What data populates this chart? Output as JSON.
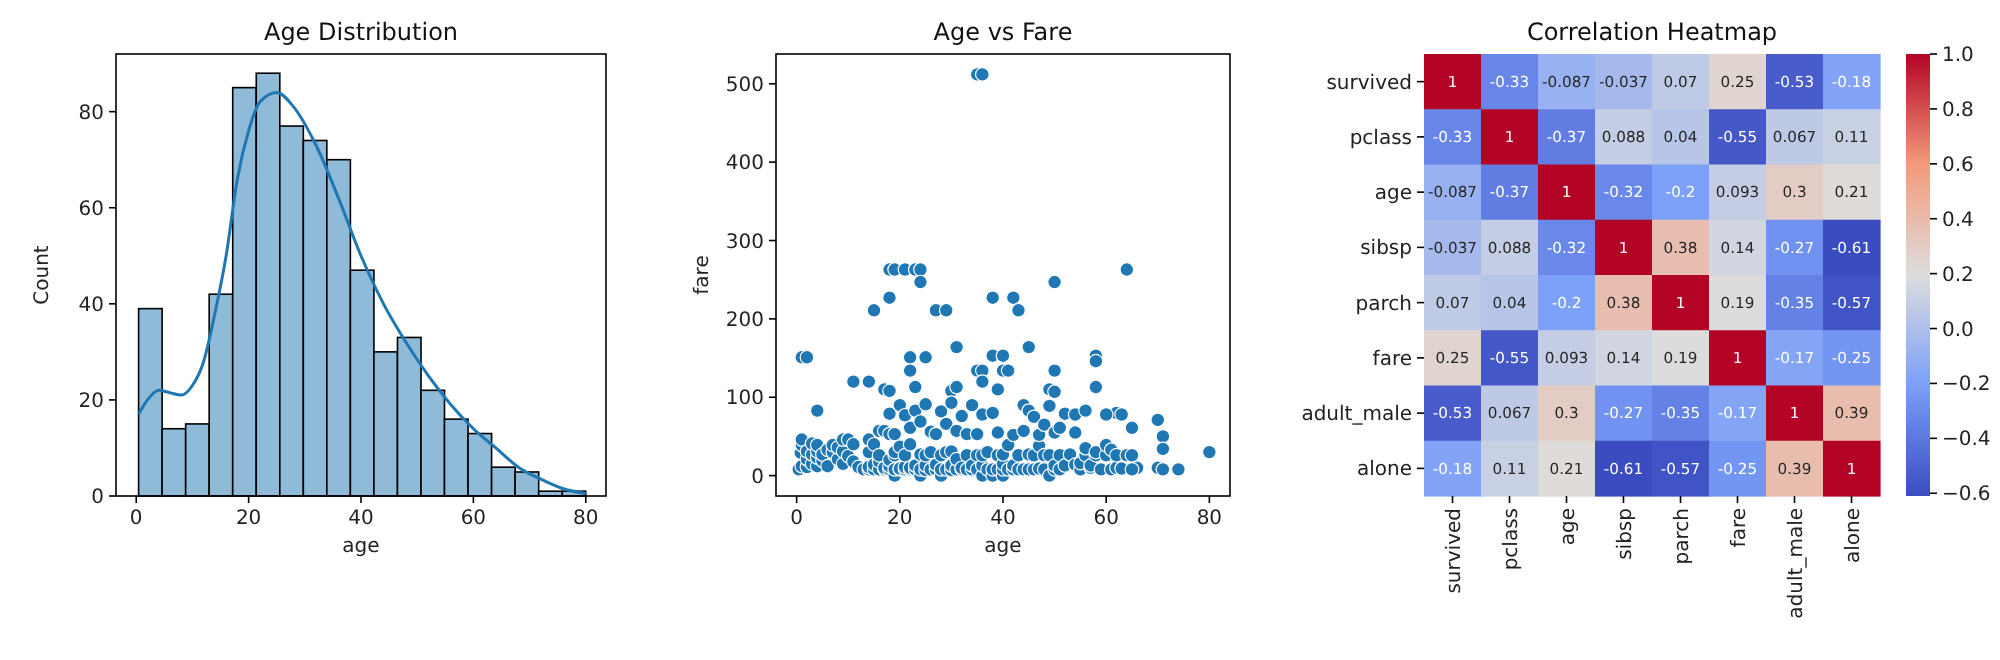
{
  "chart_data": [
    {
      "type": "histogram",
      "title": "Age Distribution",
      "xlabel": "age",
      "ylabel": "Count",
      "xlim": [
        -3.6,
        83.6
      ],
      "xticks": [
        0,
        20,
        40,
        60,
        80
      ],
      "ylim": [
        0,
        92
      ],
      "yticks": [
        0,
        20,
        40,
        60,
        80
      ],
      "series": [
        {
          "type": "histogram",
          "color": "#8fbbd9",
          "bins": [
            0.42,
            4.61,
            8.8,
            12.98,
            17.17,
            21.36,
            25.55,
            29.74,
            33.92,
            38.11,
            42.3,
            46.49,
            50.68,
            54.86,
            59.05,
            63.24,
            67.43,
            71.62,
            75.81,
            80
          ],
          "values": [
            39,
            14,
            15,
            42,
            85,
            88,
            77,
            74,
            70,
            47,
            30,
            33,
            22,
            16,
            13,
            6,
            5,
            1,
            1
          ]
        },
        {
          "type": "line",
          "color": "#1f77b4",
          "x": [
            0.42,
            2,
            4,
            6,
            8,
            10,
            12,
            14,
            16,
            18,
            20,
            22,
            25,
            28,
            32,
            36,
            40,
            44,
            48,
            52,
            56,
            60,
            64,
            68,
            72,
            76,
            80
          ],
          "values": [
            17,
            20,
            22,
            21.5,
            21,
            23,
            28,
            38,
            50,
            66,
            76,
            82,
            84,
            81,
            73,
            62,
            50,
            40,
            32,
            25,
            19,
            14,
            10,
            6,
            3.5,
            1.5,
            0.5
          ]
        }
      ]
    },
    {
      "type": "scatter",
      "title": "Age vs Fare",
      "xlabel": "age",
      "ylabel": "fare",
      "xlim": [
        -4,
        84
      ],
      "xticks": [
        0,
        20,
        40,
        60,
        80
      ],
      "ylim": [
        -26,
        538
      ],
      "yticks": [
        0,
        100,
        200,
        300,
        400,
        500
      ],
      "color": "#1f77b4",
      "x": [
        35,
        36,
        18,
        19,
        21,
        23,
        24,
        64,
        18,
        24,
        38,
        42,
        43,
        50,
        15,
        27,
        29,
        1,
        2,
        22,
        25,
        22,
        31,
        45,
        38,
        40,
        58,
        58,
        35,
        36,
        40,
        41,
        50,
        36,
        11,
        14,
        4,
        17,
        18,
        23,
        30,
        31,
        39,
        49,
        58,
        50,
        70,
        71,
        71,
        65,
        74,
        80,
        70,
        71,
        66,
        62,
        63,
        60,
        0.4,
        0.8,
        1,
        1,
        1,
        2,
        2,
        2,
        3,
        3,
        3,
        4,
        4,
        4,
        4,
        5,
        5,
        6,
        6,
        7,
        7,
        8,
        8,
        9,
        9,
        9,
        10,
        10,
        11,
        11,
        12,
        13,
        14,
        14,
        14,
        14,
        15,
        15,
        15,
        16,
        16,
        16,
        16,
        17,
        17,
        17,
        18,
        18,
        18,
        18,
        18,
        19,
        19,
        19,
        19,
        19,
        20,
        20,
        20,
        20,
        21,
        21,
        21,
        21,
        22,
        22,
        22,
        22,
        23,
        23,
        23,
        24,
        24,
        24,
        24,
        25,
        25,
        25,
        25,
        26,
        26,
        26,
        27,
        27,
        27,
        28,
        28,
        28,
        28,
        29,
        29,
        29,
        30,
        30,
        30,
        30,
        31,
        31,
        31,
        32,
        32,
        32,
        33,
        33,
        33,
        34,
        34,
        34,
        35,
        35,
        35,
        36,
        36,
        36,
        36,
        37,
        37,
        38,
        38,
        38,
        39,
        39,
        39,
        40,
        40,
        40,
        40,
        41,
        41,
        42,
        42,
        42,
        43,
        43,
        44,
        44,
        44,
        45,
        45,
        45,
        46,
        46,
        46,
        47,
        47,
        47,
        48,
        48,
        48,
        49,
        49,
        49,
        50,
        50,
        50,
        51,
        51,
        51,
        52,
        52,
        53,
        54,
        54,
        54,
        55,
        55,
        56,
        56,
        56,
        57,
        57,
        58,
        58,
        59,
        60,
        60,
        61,
        61,
        62,
        62,
        63,
        64,
        65,
        65
      ],
      "values": [
        512,
        512,
        263,
        263,
        263,
        263,
        263,
        263,
        227,
        247,
        227,
        227,
        211,
        247,
        211,
        211,
        211,
        151,
        151,
        151,
        151,
        134,
        164,
        164,
        153,
        153,
        153,
        146,
        134,
        134,
        134,
        134,
        134,
        120,
        120,
        120,
        83,
        110,
        108,
        113,
        108,
        113,
        110,
        110,
        113,
        107,
        71,
        50,
        34,
        61,
        8,
        30,
        10,
        8,
        10,
        80,
        78,
        78,
        8,
        29,
        12,
        39,
        46,
        11,
        21,
        31,
        15,
        27,
        41,
        12,
        23,
        31,
        39,
        19,
        27,
        12,
        33,
        30,
        39,
        21,
        36,
        15,
        31,
        46,
        25,
        46,
        18,
        40,
        11,
        8,
        8,
        11,
        30,
        46,
        8,
        14,
        40,
        8,
        18,
        26,
        57,
        8,
        10,
        57,
        8,
        12,
        20,
        53,
        79,
        0,
        8,
        26,
        30,
        53,
        8,
        9,
        37,
        90,
        8,
        11,
        26,
        77,
        8,
        10,
        40,
        61,
        8,
        13,
        83,
        0,
        8,
        27,
        69,
        7,
        13,
        26,
        91,
        8,
        30,
        56,
        8,
        14,
        53,
        0,
        8,
        26,
        82,
        8,
        30,
        66,
        7,
        13,
        31,
        93,
        8,
        21,
        57,
        8,
        10,
        76,
        8,
        26,
        53,
        8,
        13,
        90,
        8,
        26,
        53,
        0,
        13,
        26,
        78,
        8,
        30,
        0,
        8,
        80,
        8,
        26,
        55,
        0,
        8,
        15,
        27,
        8,
        39,
        8,
        13,
        52,
        8,
        26,
        8,
        57,
        90,
        8,
        27,
        83,
        8,
        26,
        75,
        9,
        38,
        52,
        8,
        26,
        65,
        0,
        26,
        89,
        8,
        13,
        55,
        8,
        26,
        61,
        13,
        79,
        27,
        14,
        55,
        78,
        8,
        16,
        26,
        35,
        83,
        10,
        13,
        26,
        30,
        8,
        26,
        39,
        8,
        33,
        10,
        26,
        9,
        26,
        8,
        26
      ]
    },
    {
      "type": "heatmap",
      "title": "Correlation Heatmap",
      "categories": [
        "survived",
        "pclass",
        "age",
        "sibsp",
        "parch",
        "fare",
        "adult_male",
        "alone"
      ],
      "y_categories": [
        "survived",
        "pclass",
        "age",
        "sibsp",
        "parch",
        "fare",
        "adult_male",
        "alone"
      ],
      "data_labels": true,
      "clim": [
        -0.61,
        1
      ],
      "cticks": [
        {
          "value": -0.6,
          "label": "−0.6"
        },
        {
          "value": -0.4,
          "label": "−0.4"
        },
        {
          "value": -0.2,
          "label": "−0.2"
        },
        {
          "value": 0,
          "label": "0.0"
        },
        {
          "value": 0.2,
          "label": "0.2"
        },
        {
          "value": 0.4,
          "label": "0.4"
        },
        {
          "value": 0.6,
          "label": "0.6"
        },
        {
          "value": 0.8,
          "label": "0.8"
        },
        {
          "value": 1,
          "label": "1.0"
        }
      ],
      "colors": [
        "#3b4cc0",
        "#7b9ff9",
        "#dddddd",
        "#f49a7b",
        "#b40426"
      ],
      "cells": [
        [
          1,
          -0.33,
          -0.087,
          -0.037,
          0.07,
          0.25,
          -0.53,
          -0.18
        ],
        [
          -0.33,
          1,
          -0.37,
          0.088,
          0.04,
          -0.55,
          0.067,
          0.11
        ],
        [
          -0.087,
          -0.37,
          1,
          -0.32,
          -0.2,
          0.093,
          0.3,
          0.21
        ],
        [
          -0.037,
          0.088,
          -0.32,
          1,
          0.38,
          0.14,
          -0.27,
          -0.61
        ],
        [
          0.07,
          0.04,
          -0.2,
          0.38,
          1,
          0.19,
          -0.35,
          -0.57
        ],
        [
          0.25,
          -0.55,
          0.093,
          0.14,
          0.19,
          1,
          -0.17,
          -0.25
        ],
        [
          -0.53,
          0.067,
          0.3,
          -0.27,
          -0.35,
          -0.17,
          1,
          0.39
        ],
        [
          -0.18,
          0.11,
          0.21,
          -0.61,
          -0.57,
          -0.25,
          0.39,
          1
        ]
      ]
    }
  ]
}
